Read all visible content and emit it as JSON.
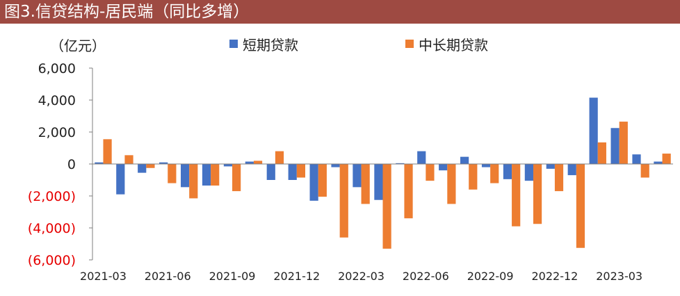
{
  "title": "图3.信贷结构-居民端（同比多增）",
  "unit_label": "（亿元）",
  "colors": {
    "title_bg": "#9e4a42",
    "short": "#4472c4",
    "long": "#ed7d31",
    "negative_tick": "#e60000"
  },
  "chart_data": {
    "type": "bar",
    "title": "图3.信贷结构-居民端（同比多增）",
    "ylabel": "（亿元）",
    "ylim": [
      -6000,
      6000
    ],
    "yticks": [
      6000,
      4000,
      2000,
      0,
      -2000,
      -4000,
      -6000
    ],
    "ytick_labels": [
      "6,000",
      "4,000",
      "2,000",
      "0",
      "(2,000)",
      "(4,000)",
      "(6,000)"
    ],
    "legend_position": "top",
    "categories": [
      "2021-03",
      "2021-04",
      "2021-05",
      "2021-06",
      "2021-07",
      "2021-08",
      "2021-09",
      "2021-10",
      "2021-11",
      "2021-12",
      "2022-01",
      "2022-02",
      "2022-03",
      "2022-04",
      "2022-05",
      "2022-06",
      "2022-07",
      "2022-08",
      "2022-09",
      "2022-10",
      "2022-11",
      "2022-12",
      "2023-01",
      "2023-02",
      "2023-03",
      "2023-04",
      "2023-05"
    ],
    "x_tick_labels": [
      "2021-03",
      "2021-06",
      "2021-09",
      "2021-12",
      "2022-03",
      "2022-06",
      "2022-09",
      "2022-12",
      "2023-03"
    ],
    "series": [
      {
        "name": "短期贷款",
        "color": "#4472c4",
        "values": [
          100,
          -1900,
          -550,
          100,
          -1450,
          -1350,
          -150,
          150,
          -1000,
          -1000,
          -2300,
          -200,
          -1450,
          -2250,
          50,
          800,
          -400,
          450,
          -200,
          -950,
          -1050,
          -300,
          -700,
          4150,
          2250,
          600,
          150
        ]
      },
      {
        "name": "中长期贷款",
        "color": "#ed7d31",
        "values": [
          1550,
          550,
          -250,
          -1200,
          -2150,
          -1350,
          -1700,
          200,
          800,
          -850,
          -2050,
          -4600,
          -2500,
          -5300,
          -3400,
          -1050,
          -2500,
          -1600,
          -1200,
          -3900,
          -3750,
          -1700,
          -5250,
          1350,
          2650,
          -850,
          650
        ]
      }
    ]
  }
}
